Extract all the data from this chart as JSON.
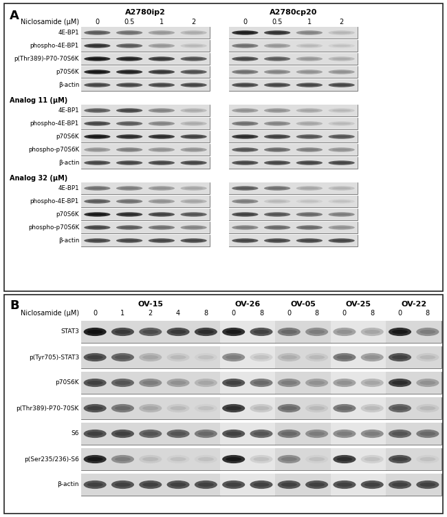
{
  "panel_A": {
    "cell_lines_left": "A2780ip2",
    "cell_lines_right": "A2780cp20",
    "doses": [
      "0",
      "0.5",
      "1",
      "2"
    ],
    "groups": [
      {
        "group_label": null,
        "header": "Niclosamide (μM)",
        "rows": [
          {
            "name": "4E-BP1",
            "lb": [
              0.55,
              0.45,
              0.25,
              0.15
            ],
            "rb": [
              0.85,
              0.75,
              0.35,
              0.1
            ]
          },
          {
            "name": "phospho-4E-BP1",
            "lb": [
              0.75,
              0.55,
              0.25,
              0.08
            ],
            "rb": [
              0.45,
              0.25,
              0.08,
              0.04
            ]
          },
          {
            "name": "p(Thr389)-P70-70S6K",
            "lb": [
              0.88,
              0.82,
              0.72,
              0.6
            ],
            "rb": [
              0.65,
              0.55,
              0.25,
              0.15
            ]
          },
          {
            "name": "p70S6K",
            "lb": [
              0.88,
              0.82,
              0.72,
              0.6
            ],
            "rb": [
              0.45,
              0.35,
              0.28,
              0.28
            ]
          },
          {
            "name": "β-actin",
            "lb": [
              0.65,
              0.65,
              0.65,
              0.65
            ],
            "rb": [
              0.65,
              0.65,
              0.65,
              0.65
            ]
          }
        ]
      },
      {
        "group_label": "Analog 11 (μM)",
        "header": null,
        "rows": [
          {
            "name": "4E-BP1",
            "lb": [
              0.55,
              0.65,
              0.35,
              0.15
            ],
            "rb": [
              0.28,
              0.28,
              0.18,
              0.08
            ]
          },
          {
            "name": "phospho-4E-BP1",
            "lb": [
              0.65,
              0.55,
              0.35,
              0.15
            ],
            "rb": [
              0.45,
              0.35,
              0.18,
              0.08
            ]
          },
          {
            "name": "p70S6K",
            "lb": [
              0.88,
              0.78,
              0.78,
              0.68
            ],
            "rb": [
              0.78,
              0.68,
              0.58,
              0.58
            ]
          },
          {
            "name": "phospho-p70S6K",
            "lb": [
              0.28,
              0.38,
              0.28,
              0.28
            ],
            "rb": [
              0.58,
              0.48,
              0.38,
              0.28
            ]
          },
          {
            "name": "β-actin",
            "lb": [
              0.65,
              0.65,
              0.65,
              0.65
            ],
            "rb": [
              0.65,
              0.65,
              0.65,
              0.65
            ]
          }
        ]
      },
      {
        "group_label": "Analog 32 (μM)",
        "header": null,
        "rows": [
          {
            "name": "4E-BP1",
            "lb": [
              0.45,
              0.38,
              0.28,
              0.18
            ],
            "rb": [
              0.55,
              0.45,
              0.18,
              0.12
            ]
          },
          {
            "name": "phospho-4E-BP1",
            "lb": [
              0.55,
              0.45,
              0.28,
              0.18
            ],
            "rb": [
              0.38,
              0.08,
              0.04,
              0.04
            ]
          },
          {
            "name": "p70S6K",
            "lb": [
              0.88,
              0.78,
              0.68,
              0.58
            ],
            "rb": [
              0.68,
              0.58,
              0.48,
              0.38
            ]
          },
          {
            "name": "phospho-p70S6K",
            "lb": [
              0.65,
              0.55,
              0.45,
              0.35
            ],
            "rb": [
              0.38,
              0.48,
              0.48,
              0.28
            ]
          },
          {
            "name": "β-actin",
            "lb": [
              0.65,
              0.65,
              0.65,
              0.65
            ],
            "rb": [
              0.65,
              0.65,
              0.65,
              0.65
            ]
          }
        ]
      }
    ]
  },
  "panel_B": {
    "group_names": [
      "OV-15",
      "OV-26",
      "OV-05",
      "OV-25",
      "OV-22"
    ],
    "group_sizes": [
      5,
      2,
      2,
      2,
      2
    ],
    "doses_row": [
      "0",
      "1",
      "2",
      "4",
      "8",
      "0",
      "8",
      "0",
      "8",
      "0",
      "8",
      "0",
      "8"
    ],
    "rows": [
      {
        "name": "STAT3",
        "bands": [
          0.95,
          0.72,
          0.62,
          0.72,
          0.78,
          0.88,
          0.68,
          0.48,
          0.38,
          0.28,
          0.18,
          0.88,
          0.38
        ]
      },
      {
        "name": "p(Tyr705)-STAT3",
        "bands": [
          0.68,
          0.58,
          0.18,
          0.08,
          0.04,
          0.38,
          0.04,
          0.14,
          0.08,
          0.48,
          0.28,
          0.68,
          0.08
        ]
      },
      {
        "name": "p70S6K",
        "bands": [
          0.68,
          0.58,
          0.38,
          0.28,
          0.18,
          0.68,
          0.48,
          0.38,
          0.28,
          0.28,
          0.18,
          0.78,
          0.28
        ]
      },
      {
        "name": "p(Thr389)-P70-70SK",
        "bands": [
          0.68,
          0.48,
          0.18,
          0.08,
          0.04,
          0.78,
          0.08,
          0.48,
          0.08,
          0.48,
          0.08,
          0.58,
          0.08
        ]
      },
      {
        "name": "S6",
        "bands": [
          0.68,
          0.68,
          0.58,
          0.58,
          0.48,
          0.68,
          0.58,
          0.48,
          0.38,
          0.38,
          0.38,
          0.58,
          0.48
        ]
      },
      {
        "name": "p(Ser235/236)-S6",
        "bands": [
          0.88,
          0.38,
          0.08,
          0.04,
          0.04,
          0.88,
          0.04,
          0.38,
          0.04,
          0.78,
          0.04,
          0.68,
          0.04
        ]
      },
      {
        "name": "β-actin",
        "bands": [
          0.68,
          0.68,
          0.68,
          0.68,
          0.68,
          0.68,
          0.68,
          0.68,
          0.68,
          0.68,
          0.68,
          0.68,
          0.68
        ]
      }
    ]
  }
}
